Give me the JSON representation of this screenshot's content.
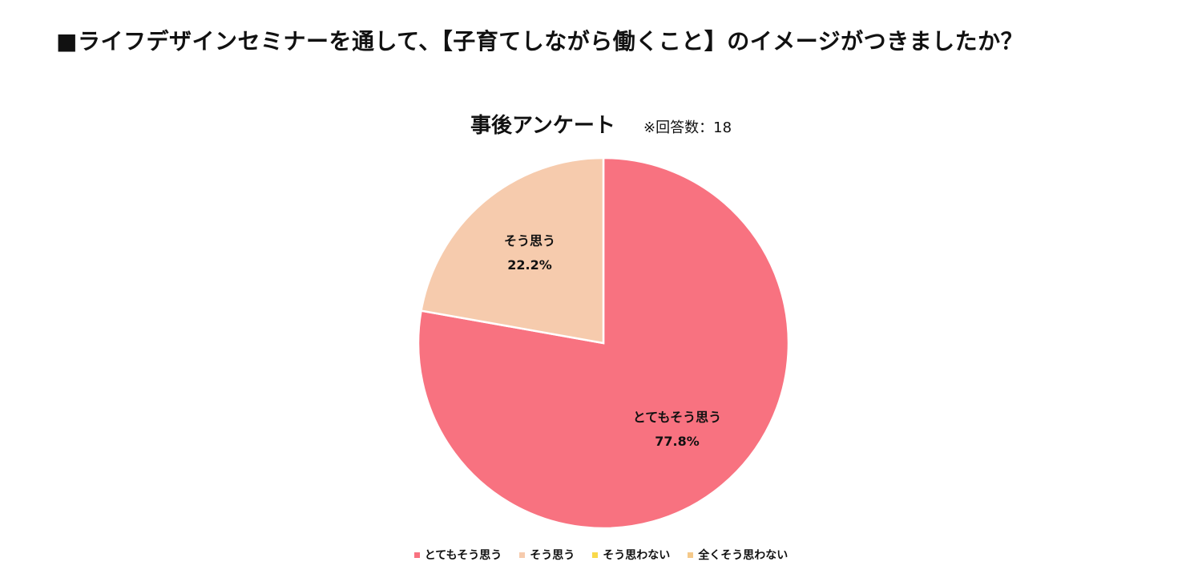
{
  "page": {
    "title": "■ライフデザインセミナーを通して、【子育てしながら働くこと】のイメージがつきましたか？"
  },
  "chart_data": {
    "type": "pie",
    "title": "事後アンケート",
    "subtitle": "※回答数：18",
    "total_responses": 18,
    "slices": [
      {
        "label": "とてもそう思う",
        "value": 77.8,
        "value_label": "77.8%",
        "color": "#f87280"
      },
      {
        "label": "そう思う",
        "value": 22.2,
        "value_label": "22.2%",
        "color": "#f6cbad"
      },
      {
        "label": "そう思わない",
        "value": 0,
        "value_label": "",
        "color": "#f9d94a"
      },
      {
        "label": "全くそう思わない",
        "value": 0,
        "value_label": "",
        "color": "#f5c98a"
      }
    ],
    "legend_position": "bottom"
  }
}
